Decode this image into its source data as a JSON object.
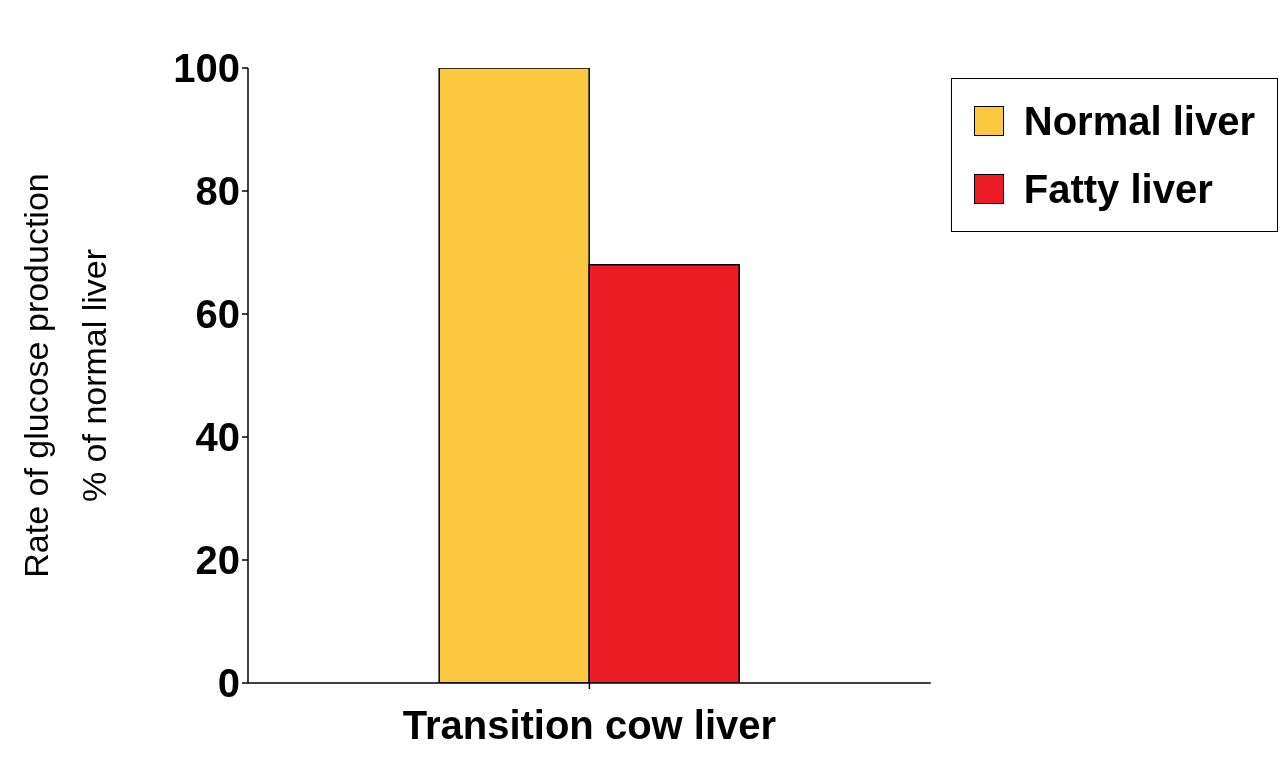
{
  "chart_data": {
    "type": "bar",
    "categories": [
      "Transition cow liver"
    ],
    "series": [
      {
        "name": "Normal liver",
        "color": "#fcc840",
        "values": [
          100
        ]
      },
      {
        "name": "Fatty liver",
        "color": "#ed1c24",
        "values": [
          68
        ]
      }
    ],
    "ylabel": "Rate of glucose production\n% of normal liver",
    "ylim": [
      0,
      100
    ],
    "yticks": [
      0,
      20,
      40,
      60,
      80,
      100
    ],
    "grid": false,
    "legend": "top right"
  }
}
